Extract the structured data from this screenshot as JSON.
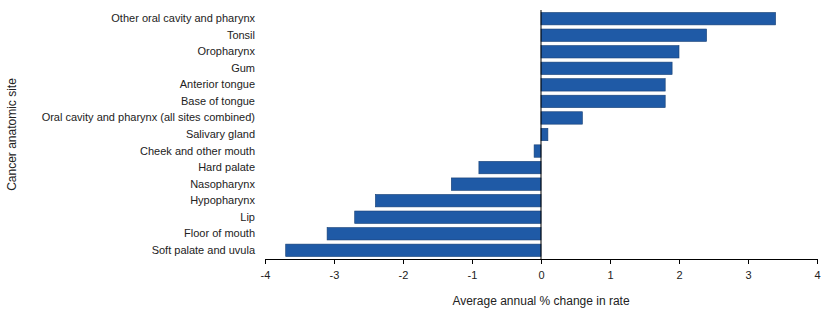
{
  "chart_data": {
    "type": "bar",
    "orientation": "horizontal",
    "x_label": "Average annual % change in rate",
    "y_label": "Cancer anatomic site",
    "categories": [
      "Other oral cavity and pharynx",
      "Tonsil",
      "Oropharynx",
      "Gum",
      "Anterior tongue",
      "Base of tongue",
      "Oral cavity and pharynx (all sites combined)",
      "Salivary gland",
      "Cheek and other mouth",
      "Hard palate",
      "Nasopharynx",
      "Hypopharynx",
      "Lip",
      "Floor of mouth",
      "Soft palate and uvula"
    ],
    "values": [
      3.4,
      2.4,
      2.0,
      1.9,
      1.8,
      1.8,
      0.6,
      0.1,
      -0.1,
      -0.9,
      -1.3,
      -2.4,
      -2.7,
      -3.1,
      -3.7
    ],
    "color": "#1f5aa6",
    "xlim": [
      -4,
      4
    ],
    "xticks": [
      -4,
      -3,
      -2,
      -1,
      0,
      1,
      2,
      3,
      4
    ],
    "grid": false
  }
}
